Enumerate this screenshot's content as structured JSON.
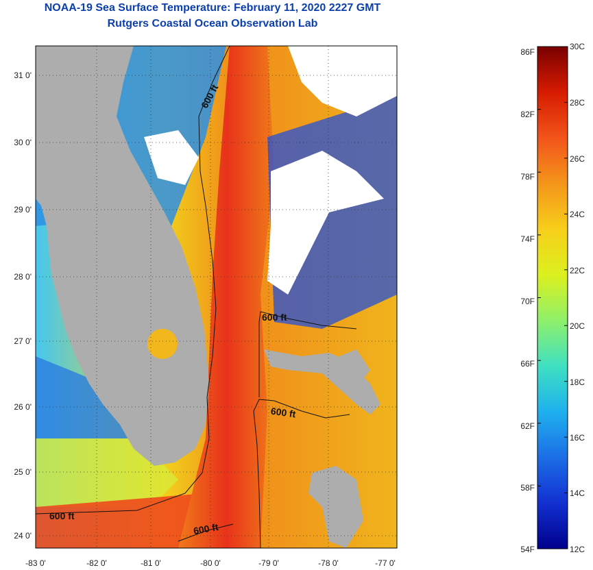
{
  "header": {
    "title": "NOAA-19 Sea Surface Temperature:  February 11, 2020 2227 GMT",
    "subtitle": "Rutgers Coastal Ocean Observation Lab"
  },
  "map": {
    "lon_labels": [
      "-83 0'",
      "-82 0'",
      "-81 0'",
      "-80 0'",
      "-79 0'",
      "-78 0'",
      "-77 0'"
    ],
    "lat_labels": [
      "31 0'",
      "30 0'",
      "29 0'",
      "28 0'",
      "27 0'",
      "26 0'",
      "25 0'",
      "24 0'"
    ],
    "contour_labels": [
      "600 ft",
      "600 ft",
      "600 ft",
      "600 ft",
      "600 ft"
    ],
    "colors": {
      "land": "#adadad",
      "cloud": "#ffffff",
      "warm": "#e8431c",
      "cool": "#2a6ae0"
    }
  },
  "colorbar": {
    "fahrenheit": [
      "86F",
      "82F",
      "78F",
      "74F",
      "70F",
      "66F",
      "62F",
      "58F",
      "54F"
    ],
    "celsius": [
      "30C",
      "28C",
      "26C",
      "24C",
      "22C",
      "20C",
      "18C",
      "16C",
      "14C",
      "12C"
    ],
    "gradient": [
      "#7a0000",
      "#d61b00",
      "#f2541a",
      "#f4951a",
      "#f7cf1a",
      "#dcf01e",
      "#8ff06a",
      "#3fe0c2",
      "#1fb0ee",
      "#1c6ee6",
      "#1230d0",
      "#00008c"
    ]
  }
}
